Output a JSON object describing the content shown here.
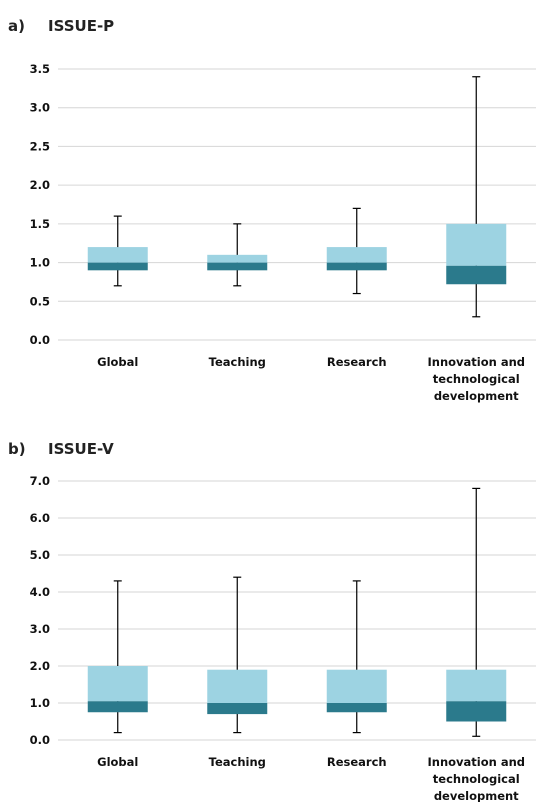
{
  "chart_data": [
    {
      "type": "box",
      "panel_label": "a)",
      "title": "ISSUE-P",
      "categories": [
        "Global",
        "Teaching",
        "Research",
        "Innovation and technological development"
      ],
      "ylim": [
        0,
        3.5
      ],
      "yticks": [
        "0.0",
        "0.5",
        "1.0",
        "1.5",
        "2.0",
        "2.5",
        "3.0",
        "3.5"
      ],
      "grid": true,
      "colors": {
        "upper_box": "#9dd3e2",
        "lower_box": "#2b7a8c",
        "whisker": "#000000"
      },
      "boxes": [
        {
          "min": 0.7,
          "q1": 0.9,
          "median": 1.0,
          "q3": 1.2,
          "max": 1.6
        },
        {
          "min": 0.7,
          "q1": 0.9,
          "median": 1.0,
          "q3": 1.1,
          "max": 1.5
        },
        {
          "min": 0.6,
          "q1": 0.9,
          "median": 1.0,
          "q3": 1.2,
          "max": 1.7
        },
        {
          "min": 0.3,
          "q1": 0.72,
          "median": 0.96,
          "q3": 1.5,
          "max": 3.4
        }
      ]
    },
    {
      "type": "box",
      "panel_label": "b)",
      "title": "ISSUE-V",
      "categories": [
        "Global",
        "Teaching",
        "Research",
        "Innovation and technological development"
      ],
      "ylim": [
        0,
        7
      ],
      "yticks": [
        "0.0",
        "1.0",
        "2.0",
        "3.0",
        "4.0",
        "5.0",
        "6.0",
        "7.0"
      ],
      "grid": true,
      "colors": {
        "upper_box": "#9dd3e2",
        "lower_box": "#2b7a8c",
        "whisker": "#000000"
      },
      "boxes": [
        {
          "min": 0.2,
          "q1": 0.75,
          "median": 1.05,
          "q3": 2.0,
          "max": 4.3
        },
        {
          "min": 0.2,
          "q1": 0.7,
          "median": 1.0,
          "q3": 1.9,
          "max": 4.4
        },
        {
          "min": 0.2,
          "q1": 0.75,
          "median": 1.0,
          "q3": 1.9,
          "max": 4.3
        },
        {
          "min": 0.1,
          "q1": 0.5,
          "median": 1.05,
          "q3": 1.9,
          "max": 6.8
        }
      ]
    }
  ]
}
